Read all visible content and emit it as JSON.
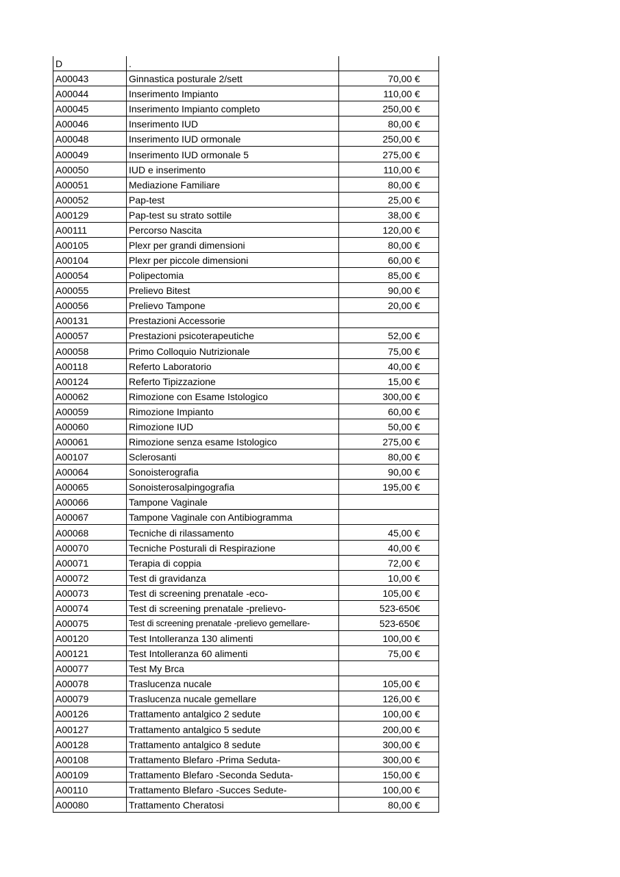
{
  "table": {
    "rows": [
      [
        "D",
        ".",
        ""
      ],
      [
        "A00043",
        "Ginnastica posturale 2/sett",
        "70,00 €"
      ],
      [
        "A00044",
        "Inserimento Impianto",
        "110,00 €"
      ],
      [
        "A00045",
        "Inserimento Impianto completo",
        "250,00 €"
      ],
      [
        "A00046",
        "Inserimento IUD",
        "80,00 €"
      ],
      [
        "A00048",
        "Inserimento IUD ormonale",
        "250,00 €"
      ],
      [
        "A00049",
        "Inserimento IUD ormonale 5",
        "275,00 €"
      ],
      [
        "A00050",
        "IUD e inserimento",
        "110,00 €"
      ],
      [
        "A00051",
        "Mediazione Familiare",
        "80,00 €"
      ],
      [
        "A00052",
        "Pap-test",
        "25,00 €"
      ],
      [
        "A00129",
        "Pap-test su strato sottile",
        "38,00 €"
      ],
      [
        "A00111",
        "Percorso Nascita",
        "120,00 €"
      ],
      [
        "A00105",
        "Plexr per grandi dimensioni",
        "80,00 €"
      ],
      [
        "A00104",
        "Plexr per piccole dimensioni",
        "60,00 €"
      ],
      [
        "A00054",
        "Polipectomia",
        "85,00 €"
      ],
      [
        "A00055",
        "Prelievo Bitest",
        "90,00 €"
      ],
      [
        "A00056",
        "Prelievo Tampone",
        "20,00 €"
      ],
      [
        "A00131",
        "Prestazioni Accessorie",
        ""
      ],
      [
        "A00057",
        "Prestazioni psicoterapeutiche",
        "52,00 €"
      ],
      [
        "A00058",
        "Primo Colloquio Nutrizionale",
        "75,00 €"
      ],
      [
        "A00118",
        "Referto Laboratorio",
        "40,00 €"
      ],
      [
        "A00124",
        "Referto Tipizzazione",
        "15,00 €"
      ],
      [
        "A00062",
        "Rimozione con Esame Istologico",
        "300,00 €"
      ],
      [
        "A00059",
        "Rimozione Impianto",
        "60,00 €"
      ],
      [
        "A00060",
        "Rimozione IUD",
        "50,00 €"
      ],
      [
        "A00061",
        "Rimozione senza esame Istologico",
        "275,00 €"
      ],
      [
        "A00107",
        "Sclerosanti",
        "80,00 €"
      ],
      [
        "A00064",
        "Sonoisterografia",
        "90,00 €"
      ],
      [
        "A00065",
        "Sonoisterosalpingografia",
        "195,00 €"
      ],
      [
        "A00066",
        "Tampone Vaginale",
        ""
      ],
      [
        "A00067",
        "Tampone Vaginale con Antibiogramma",
        ""
      ],
      [
        "A00068",
        "Tecniche di rilassamento",
        "45,00 €"
      ],
      [
        "A00070",
        "Tecniche Posturali di Respirazione",
        "40,00 €"
      ],
      [
        "A00071",
        "Terapia di coppia",
        "72,00 €"
      ],
      [
        "A00072",
        "Test di gravidanza",
        "10,00 €"
      ],
      [
        "A00073",
        "Test di screening prenatale -eco-",
        "105,00 €"
      ],
      [
        "A00074",
        "Test di screening prenatale -prelievo-",
        "523-650€"
      ],
      [
        "A00075",
        "Test di screening prenatale -prelievo gemellare-",
        "523-650€"
      ],
      [
        "A00120",
        "Test Intolleranza 130 alimenti",
        "100,00 €"
      ],
      [
        "A00121",
        "Test Intolleranza 60 alimenti",
        "75,00 €"
      ],
      [
        "A00077",
        "Test My Brca",
        ""
      ],
      [
        "A00078",
        "Traslucenza nucale",
        "105,00 €"
      ],
      [
        "A00079",
        "Traslucenza nucale gemellare",
        "126,00 €"
      ],
      [
        "A00126",
        "Trattamento antalgico  2 sedute",
        "100,00 €"
      ],
      [
        "A00127",
        "Trattamento antalgico  5 sedute",
        "200,00 €"
      ],
      [
        "A00128",
        "Trattamento antalgico  8 sedute",
        "300,00 €"
      ],
      [
        "A00108",
        "Trattamento Blefaro -Prima Seduta-",
        "300,00 €"
      ],
      [
        "A00109",
        "Trattamento Blefaro -Seconda Seduta-",
        "150,00 €"
      ],
      [
        "A00110",
        "Trattamento Blefaro -Succes Sedute-",
        "100,00 €"
      ],
      [
        "A00080",
        "Trattamento Cheratosi",
        "80,00 €"
      ]
    ]
  }
}
